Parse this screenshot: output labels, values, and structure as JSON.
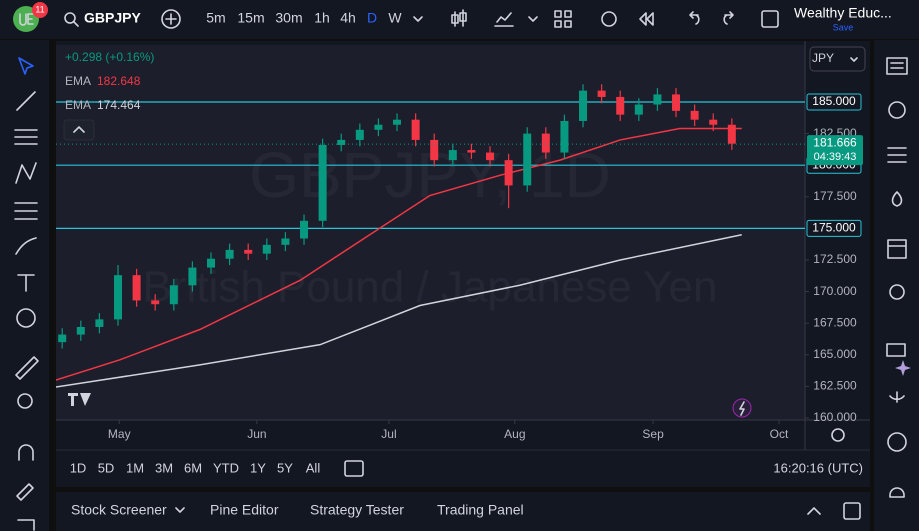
{
  "header": {
    "badge": "11",
    "symbol": "GBPJPY",
    "intervals": [
      "5m",
      "15m",
      "30m",
      "1h",
      "4h",
      "D",
      "W"
    ],
    "active_interval": "D",
    "account": "Wealthy Educ...",
    "save": "Save"
  },
  "chart_data": {
    "type": "candlestick",
    "change": "+0.298 (+0.16%)",
    "currency": "JPY",
    "watermark": "GBPJPY, 1D",
    "watermark_subtitle": "British Pound / Japanese Yen",
    "xlim": [
      0,
      120.8
    ],
    "ylim": [
      159.84,
      189.51
    ],
    "xticks": [
      {
        "value": 10.2,
        "label": "May"
      },
      {
        "value": 32.4,
        "label": "Jun"
      },
      {
        "value": 53.7,
        "label": "Jul"
      },
      {
        "value": 74,
        "label": "Aug"
      },
      {
        "value": 96.3,
        "label": "Sep"
      },
      {
        "value": 116.6,
        "label": "Oct"
      }
    ],
    "yticks": [
      {
        "value": 182.5,
        "label": "182.500"
      },
      {
        "value": 177.5,
        "label": "177.500"
      },
      {
        "value": 172.5,
        "label": "172.500"
      },
      {
        "value": 170,
        "label": "170.000"
      },
      {
        "value": 167.5,
        "label": "167.500"
      },
      {
        "value": 165,
        "label": "165.000"
      },
      {
        "value": 162.5,
        "label": "162.500"
      },
      {
        "value": 160,
        "label": "160.000"
      }
    ],
    "up_color": "#089981",
    "down_color": "#f23645",
    "candles": {
      "x": [
        1,
        4,
        7,
        10,
        13,
        16,
        19,
        22,
        25,
        28,
        31,
        34,
        37,
        40,
        43,
        46,
        49,
        52,
        55,
        58,
        61,
        64,
        67,
        70,
        73,
        76,
        79,
        82,
        85,
        88,
        91,
        94,
        97,
        100,
        103,
        106,
        109
      ],
      "open": [
        166.0,
        166.6,
        167.2,
        167.8,
        171.3,
        169.3,
        169.0,
        170.5,
        171.9,
        172.6,
        173.3,
        173.0,
        173.7,
        174.2,
        175.6,
        181.6,
        182.0,
        182.8,
        183.2,
        183.6,
        182.0,
        180.4,
        181.2,
        181.0,
        180.4,
        178.4,
        182.5,
        181.0,
        183.5,
        185.9,
        185.4,
        184.0,
        184.8,
        185.6,
        184.3,
        183.6,
        183.2
      ],
      "high": [
        167.1,
        167.7,
        168.3,
        172.1,
        171.8,
        169.8,
        171.0,
        172.4,
        173.1,
        173.8,
        173.8,
        174.2,
        174.7,
        176.1,
        182.1,
        182.5,
        183.3,
        183.7,
        184.1,
        184.1,
        182.5,
        181.7,
        181.7,
        181.5,
        180.9,
        183.0,
        183.0,
        184.0,
        186.4,
        186.4,
        185.9,
        185.3,
        186.1,
        186.1,
        184.8,
        184.1,
        183.7
      ],
      "low": [
        165.5,
        166.1,
        166.7,
        167.3,
        168.8,
        168.5,
        168.5,
        170.0,
        171.4,
        172.1,
        172.5,
        172.5,
        173.2,
        173.7,
        175.1,
        181.1,
        181.5,
        182.3,
        182.7,
        181.5,
        179.9,
        179.9,
        180.5,
        179.9,
        176.6,
        177.9,
        180.5,
        180.5,
        183.0,
        184.9,
        183.5,
        183.5,
        184.3,
        183.8,
        183.1,
        182.7,
        181.2
      ],
      "close": [
        166.6,
        167.2,
        167.8,
        171.3,
        169.3,
        169.0,
        170.5,
        171.9,
        172.6,
        173.3,
        173.0,
        173.7,
        174.2,
        175.6,
        181.6,
        182.0,
        182.8,
        183.2,
        183.6,
        182.0,
        180.4,
        181.2,
        181.0,
        180.4,
        178.4,
        182.5,
        181.0,
        183.5,
        185.9,
        185.4,
        184.0,
        184.8,
        185.6,
        184.3,
        183.6,
        183.2,
        181.7
      ]
    },
    "series": [
      {
        "name": "EMA",
        "color": "#f23645",
        "last": 182.648,
        "x": [
          0,
          10.3,
          23.2,
          39.4,
          50.6,
          60.3,
          71.6,
          81.3,
          91,
          100.6,
          110.6
        ],
        "values": [
          163.0,
          164.6,
          167.0,
          170.9,
          174.5,
          177.6,
          179.2,
          180.4,
          182.0,
          182.9,
          182.9
        ]
      },
      {
        "name": "EMA",
        "color": "#d1d4dc",
        "last": 174.464,
        "x": [
          0,
          23.2,
          42.6,
          58.7,
          74.8,
          91,
          110.6
        ],
        "values": [
          162.45,
          164.2,
          165.8,
          168.9,
          170.5,
          172.5,
          174.5
        ]
      }
    ],
    "hlines": [
      {
        "value": 185,
        "label": "185.000"
      },
      {
        "value": 180,
        "label": "180.000"
      },
      {
        "value": 175,
        "label": "175.000"
      }
    ],
    "hline_color": "#26c6da",
    "last_price": 181.666,
    "countdown": "04:39:43"
  },
  "footer": {
    "ranges": [
      "1D",
      "5D",
      "1M",
      "3M",
      "6M",
      "YTD",
      "1Y",
      "5Y",
      "All"
    ],
    "clock": "16:20:16 (UTC)"
  },
  "tabs": [
    "Stock Screener",
    "Pine Editor",
    "Strategy Tester",
    "Trading Panel"
  ]
}
